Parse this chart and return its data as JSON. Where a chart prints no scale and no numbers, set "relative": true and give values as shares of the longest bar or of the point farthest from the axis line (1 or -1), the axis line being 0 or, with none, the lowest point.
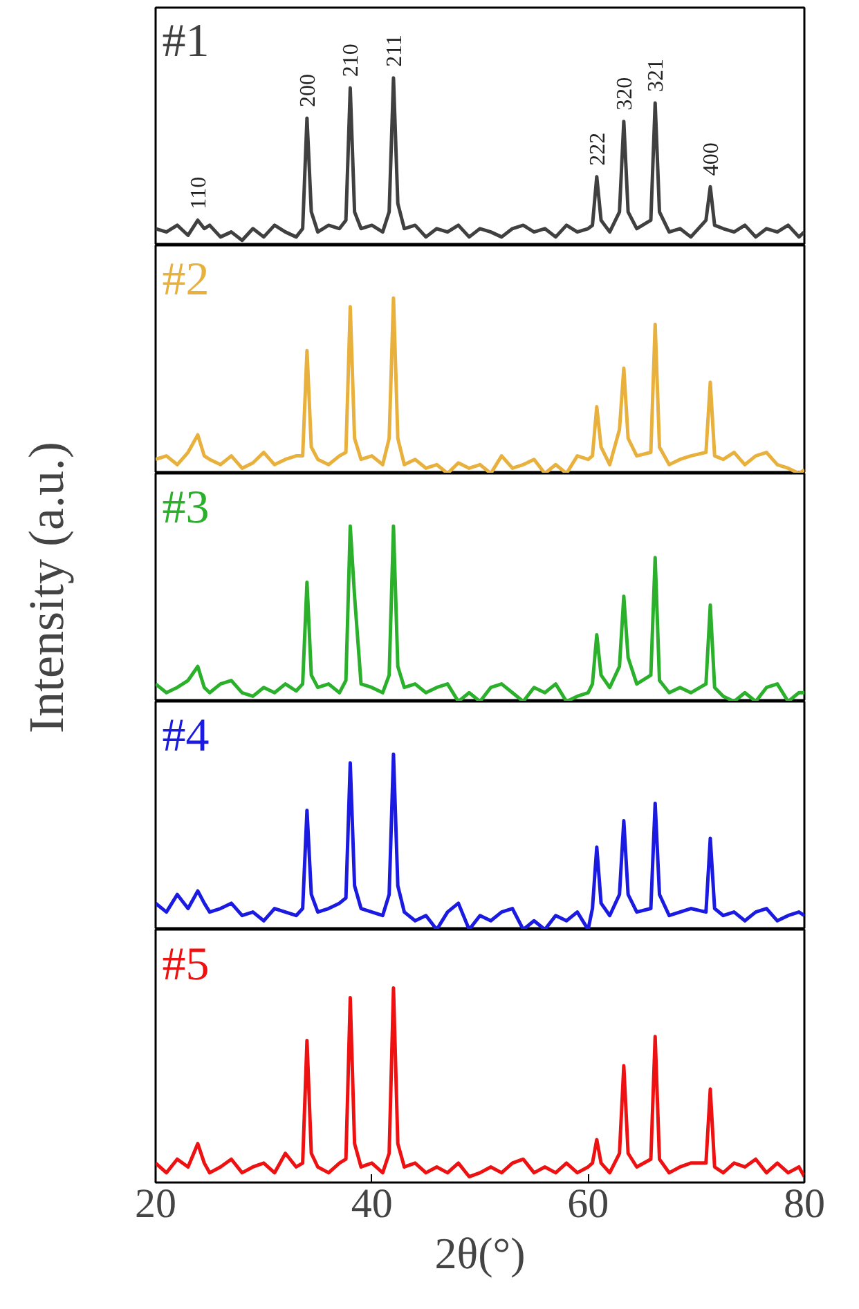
{
  "chart_data": [
    {
      "type": "line",
      "relative": true,
      "tick_labels": false,
      "xlim": [
        20,
        80
      ],
      "xticks": [
        20,
        40,
        60,
        80
      ],
      "grid": false,
      "x": [
        20,
        21,
        22,
        23,
        23.9,
        24.5,
        25,
        26,
        27,
        28,
        29,
        30,
        31,
        32,
        33,
        33.6,
        34,
        34.4,
        35,
        36,
        37,
        37.6,
        38,
        38.4,
        39,
        40,
        41,
        41.6,
        42,
        42.4,
        43,
        44,
        45,
        46,
        47,
        48,
        49,
        50,
        51,
        52,
        53,
        54,
        55,
        56,
        57,
        58,
        59,
        60,
        60.4,
        60.8,
        61.2,
        62,
        62.9,
        63.3,
        63.7,
        64.5,
        65.8,
        66.2,
        66.6,
        67.5,
        68.5,
        69.5,
        70.9,
        71.3,
        71.7,
        72.5,
        73.5,
        74.5,
        75.5,
        76.5,
        77.5,
        78.5,
        79.5,
        80
      ],
      "series": [
        {
          "name": "#1",
          "color": "#404040",
          "values": [
            0.1,
            0.08,
            0.12,
            0.06,
            0.15,
            0.1,
            0.12,
            0.05,
            0.08,
            0.03,
            0.1,
            0.05,
            0.12,
            0.08,
            0.05,
            0.1,
            0.76,
            0.2,
            0.08,
            0.12,
            0.1,
            0.15,
            0.94,
            0.2,
            0.1,
            0.12,
            0.08,
            0.2,
            1,
            0.25,
            0.1,
            0.12,
            0.05,
            0.1,
            0.08,
            0.12,
            0.05,
            0.1,
            0.08,
            0.05,
            0.1,
            0.12,
            0.08,
            0.1,
            0.05,
            0.12,
            0.08,
            0.1,
            0.12,
            0.41,
            0.15,
            0.08,
            0.2,
            0.74,
            0.2,
            0.1,
            0.15,
            0.85,
            0.2,
            0.08,
            0.1,
            0.05,
            0.15,
            0.35,
            0.12,
            0.1,
            0.08,
            0.12,
            0.05,
            0.1,
            0.08,
            0.12,
            0.05,
            0.08
          ]
        }
      ],
      "annotations": [
        {
          "text": "110",
          "x": 23.9,
          "y": 0.15
        },
        {
          "text": "200",
          "x": 34,
          "y": 0.76
        },
        {
          "text": "210",
          "x": 38,
          "y": 0.94
        },
        {
          "text": "211",
          "x": 42,
          "y": 1
        },
        {
          "text": "222",
          "x": 60.8,
          "y": 0.41
        },
        {
          "text": "320",
          "x": 63.3,
          "y": 0.74
        },
        {
          "text": "321",
          "x": 66.2,
          "y": 0.85
        },
        {
          "text": "400",
          "x": 71.3,
          "y": 0.35
        }
      ]
    },
    {
      "type": "line",
      "relative": true,
      "tick_labels": false,
      "xlim": [
        20,
        80
      ],
      "xticks": [
        20,
        40,
        60,
        80
      ],
      "grid": false,
      "x": [
        20,
        21,
        22,
        23,
        23.9,
        24.5,
        25,
        26,
        27,
        28,
        29,
        30,
        31,
        32,
        33,
        33.6,
        34,
        34.4,
        35,
        36,
        37,
        37.6,
        38,
        38.4,
        39,
        40,
        41,
        41.6,
        42,
        42.4,
        43,
        44,
        45,
        46,
        47,
        48,
        49,
        50,
        51,
        52,
        53,
        54,
        55,
        56,
        57,
        58,
        59,
        60,
        60.4,
        60.8,
        61.2,
        62,
        62.9,
        63.3,
        63.7,
        64.5,
        65.8,
        66.2,
        66.6,
        67.5,
        68.5,
        69.5,
        70.9,
        71.3,
        71.7,
        72.5,
        73.5,
        74.5,
        75.5,
        76.5,
        77.5,
        78.5,
        79.5,
        80
      ],
      "series": [
        {
          "name": "#2",
          "color": "#e8b03c",
          "values": [
            0.08,
            0.1,
            0.05,
            0.12,
            0.22,
            0.1,
            0.08,
            0.05,
            0.1,
            0.03,
            0.06,
            0.12,
            0.05,
            0.08,
            0.1,
            0.1,
            0.7,
            0.15,
            0.08,
            0.05,
            0.1,
            0.12,
            0.95,
            0.2,
            0.08,
            0.1,
            0.05,
            0.2,
            1,
            0.2,
            0.05,
            0.08,
            0.03,
            0.05,
            0,
            0.06,
            0.03,
            0.05,
            0,
            0.1,
            0.03,
            0.05,
            0.08,
            0,
            0.05,
            0,
            0.1,
            0.08,
            0.1,
            0.38,
            0.15,
            0.05,
            0.25,
            0.6,
            0.2,
            0.1,
            0.12,
            0.85,
            0.15,
            0.05,
            0.08,
            0.1,
            0.12,
            0.52,
            0.1,
            0.08,
            0.12,
            0.05,
            0.1,
            0.12,
            0.05,
            0.03,
            0,
            0.02
          ]
        }
      ]
    },
    {
      "type": "line",
      "relative": true,
      "tick_labels": false,
      "xlim": [
        20,
        80
      ],
      "xticks": [
        20,
        40,
        60,
        80
      ],
      "grid": false,
      "ylabel": "Intensity (a.u.)",
      "x": [
        20,
        21,
        22,
        23,
        23.9,
        24.5,
        25,
        26,
        27,
        28,
        29,
        30,
        31,
        32,
        33,
        33.6,
        34,
        34.4,
        35,
        36,
        37,
        37.6,
        38,
        38.4,
        39,
        40,
        41,
        41.6,
        42,
        42.4,
        43,
        44,
        45,
        46,
        47,
        48,
        49,
        50,
        51,
        52,
        53,
        54,
        55,
        56,
        57,
        58,
        59,
        60,
        60.4,
        60.8,
        61.2,
        62,
        62.9,
        63.3,
        63.7,
        64.5,
        65.8,
        66.2,
        66.6,
        67.5,
        68.5,
        69.5,
        70.9,
        71.3,
        71.7,
        72.5,
        73.5,
        74.5,
        75.5,
        76.5,
        77.5,
        78.5,
        79.5,
        80
      ],
      "series": [
        {
          "name": "#3",
          "color": "#2bb02b",
          "values": [
            0.1,
            0.05,
            0.08,
            0.12,
            0.2,
            0.08,
            0.05,
            0.1,
            0.12,
            0.05,
            0.03,
            0.08,
            0.05,
            0.1,
            0.06,
            0.1,
            0.68,
            0.15,
            0.08,
            0.1,
            0.05,
            0.12,
            1,
            0.6,
            0.1,
            0.08,
            0.05,
            0.15,
            1,
            0.2,
            0.08,
            0.1,
            0.05,
            0.08,
            0.1,
            0,
            0.05,
            0,
            0.08,
            0.1,
            0.05,
            0,
            0.08,
            0.05,
            0.1,
            0,
            0.03,
            0.05,
            0.1,
            0.38,
            0.15,
            0.08,
            0.2,
            0.6,
            0.25,
            0.1,
            0.15,
            0.82,
            0.12,
            0.05,
            0.08,
            0.05,
            0.1,
            0.55,
            0.08,
            0.03,
            0,
            0.05,
            0,
            0.08,
            0.1,
            0,
            0.05,
            0.05
          ]
        }
      ]
    },
    {
      "type": "line",
      "relative": true,
      "tick_labels": false,
      "xlim": [
        20,
        80
      ],
      "xticks": [
        20,
        40,
        60,
        80
      ],
      "grid": false,
      "x": [
        20,
        21,
        22,
        23,
        23.9,
        24.5,
        25,
        26,
        27,
        28,
        29,
        30,
        31,
        32,
        33,
        33.6,
        34,
        34.4,
        35,
        36,
        37,
        37.6,
        38,
        38.4,
        39,
        40,
        41,
        41.6,
        42,
        42.4,
        43,
        44,
        45,
        46,
        47,
        48,
        49,
        50,
        51,
        52,
        53,
        54,
        55,
        56,
        57,
        58,
        59,
        60,
        60.4,
        60.8,
        61.2,
        62,
        62.9,
        63.3,
        63.7,
        64.5,
        65.8,
        66.2,
        66.6,
        67.5,
        68.5,
        69.5,
        70.9,
        71.3,
        71.7,
        72.5,
        73.5,
        74.5,
        75.5,
        76.5,
        77.5,
        78.5,
        79.5,
        80
      ],
      "series": [
        {
          "name": "#4",
          "color": "#1a1ae0",
          "values": [
            0.15,
            0.1,
            0.2,
            0.12,
            0.22,
            0.15,
            0.1,
            0.12,
            0.15,
            0.08,
            0.1,
            0.05,
            0.12,
            0.1,
            0.08,
            0.12,
            0.68,
            0.2,
            0.1,
            0.12,
            0.15,
            0.18,
            0.95,
            0.25,
            0.12,
            0.1,
            0.08,
            0.2,
            1,
            0.25,
            0.1,
            0.05,
            0.08,
            0,
            0.1,
            0.15,
            0,
            0.08,
            0.05,
            0.1,
            0.12,
            0,
            0.05,
            0,
            0.08,
            0.05,
            0.1,
            0,
            0.12,
            0.47,
            0.15,
            0.08,
            0.2,
            0.62,
            0.2,
            0.1,
            0.12,
            0.72,
            0.2,
            0.08,
            0.1,
            0.12,
            0.1,
            0.52,
            0.12,
            0.08,
            0.1,
            0.05,
            0.1,
            0.12,
            0.05,
            0.08,
            0.1,
            0.08
          ]
        }
      ]
    },
    {
      "type": "line",
      "relative": true,
      "tick_labels": "x",
      "xlim": [
        20,
        80
      ],
      "xticks": [
        20,
        40,
        60,
        80
      ],
      "grid": false,
      "xlabel": "2θ(°)",
      "x": [
        20,
        21,
        22,
        23,
        23.9,
        24.5,
        25,
        26,
        27,
        28,
        29,
        30,
        31,
        32,
        33,
        33.6,
        34,
        34.4,
        35,
        36,
        37,
        37.6,
        38,
        38.4,
        39,
        40,
        41,
        41.6,
        42,
        42.4,
        43,
        44,
        45,
        46,
        47,
        48,
        49,
        50,
        51,
        52,
        53,
        54,
        55,
        56,
        57,
        58,
        59,
        60,
        60.4,
        60.8,
        61.2,
        62,
        62.9,
        63.3,
        63.7,
        64.5,
        65.8,
        66.2,
        66.6,
        67.5,
        68.5,
        69.5,
        70.9,
        71.3,
        71.7,
        72.5,
        73.5,
        74.5,
        75.5,
        76.5,
        77.5,
        78.5,
        79.5,
        80
      ],
      "series": [
        {
          "name": "#5",
          "color": "#ee1111",
          "values": [
            0.1,
            0.05,
            0.12,
            0.08,
            0.2,
            0.1,
            0.05,
            0.08,
            0.12,
            0.05,
            0.08,
            0.1,
            0.05,
            0.15,
            0.08,
            0.1,
            0.73,
            0.15,
            0.08,
            0.05,
            0.1,
            0.12,
            0.95,
            0.2,
            0.08,
            0.1,
            0.05,
            0.15,
            1,
            0.2,
            0.08,
            0.1,
            0.05,
            0.08,
            0.05,
            0.1,
            0.03,
            0.05,
            0.08,
            0.05,
            0.1,
            0.12,
            0.05,
            0.08,
            0.05,
            0.1,
            0.05,
            0.08,
            0.1,
            0.22,
            0.1,
            0.05,
            0.15,
            0.6,
            0.15,
            0.08,
            0.12,
            0.75,
            0.12,
            0.05,
            0.08,
            0.1,
            0.1,
            0.48,
            0.08,
            0.05,
            0.1,
            0.08,
            0.12,
            0.05,
            0.1,
            0.05,
            0.08,
            0.03
          ]
        }
      ]
    }
  ]
}
